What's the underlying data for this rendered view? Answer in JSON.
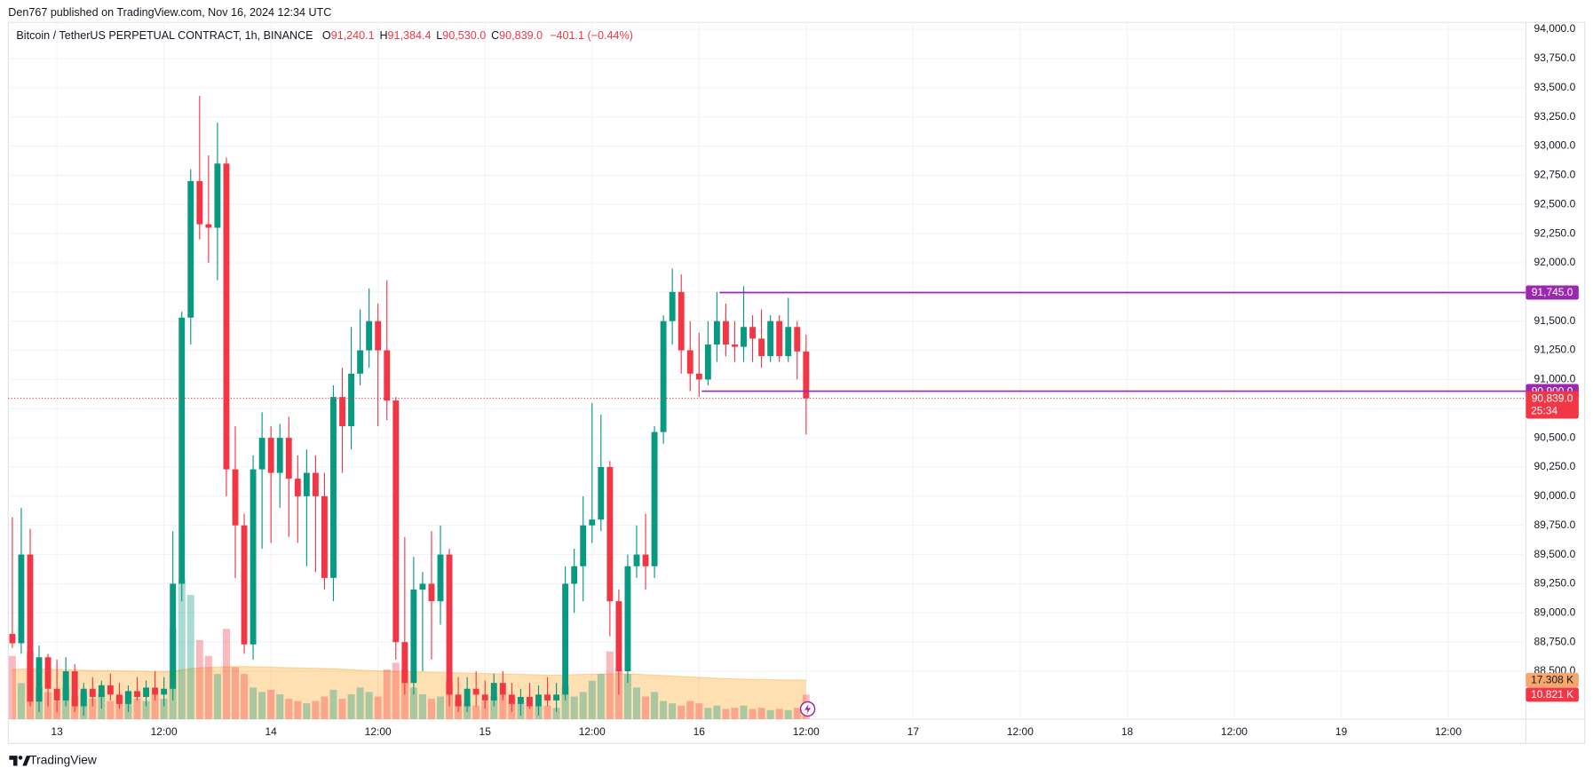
{
  "header": {
    "byline": "Den767 published on TradingView.com, Nov 16, 2024 12:34 UTC"
  },
  "footer": {
    "brand": "TradingView"
  },
  "chart_data": {
    "type": "candlestick",
    "symbol": "Bitcoin / TetherUS PERPETUAL CONTRACT, 1h, BINANCE",
    "legend": [
      {
        "key": "O",
        "value": "91,240.1"
      },
      {
        "key": "H",
        "value": "91,384.4"
      },
      {
        "key": "L",
        "value": "90,530.0"
      },
      {
        "key": "C",
        "value": "90,839.0"
      }
    ],
    "change": "−401.1 (−0.44%)",
    "up_color": "#089981",
    "down_color": "#f23645",
    "open": [
      88820,
      88740,
      89500,
      88240,
      88620,
      88350,
      88250,
      88500,
      88200,
      88350,
      88280,
      88380,
      88300,
      88220,
      88330,
      88280,
      88360,
      88300,
      88350,
      89250,
      91530,
      92700,
      92330,
      92300,
      92850,
      90230,
      89750,
      88730,
      90230,
      90500,
      90200,
      90500,
      90150,
      90000,
      90200,
      90000,
      89300,
      90850,
      90600,
      91050,
      91250,
      91500,
      91250,
      90820,
      88750,
      88400,
      89200,
      89250,
      89100,
      89500,
      88300,
      88200,
      88350,
      88300,
      88250,
      88400,
      88300,
      88220,
      88280,
      88200,
      88300,
      88250,
      88300,
      89250,
      89400,
      89750,
      89800,
      90250,
      89100,
      88500,
      89400,
      89500,
      89400,
      90550,
      91500,
      91750,
      91250,
      91050,
      91000,
      91300,
      91500,
      91300,
      91280,
      91450,
      91350,
      91200,
      91500,
      91200,
      91450,
      91240.1
    ],
    "high": [
      89820,
      89900,
      89720,
      88720,
      88650,
      88600,
      88620,
      88560,
      88400,
      88450,
      88420,
      88480,
      88400,
      88380,
      88450,
      88420,
      88500,
      88450,
      89700,
      91580,
      92800,
      93430,
      92920,
      93200,
      92900,
      90600,
      89850,
      90350,
      90720,
      90600,
      90620,
      90680,
      90350,
      90400,
      90350,
      90200,
      90950,
      91100,
      91450,
      91600,
      91780,
      91650,
      91850,
      90850,
      89650,
      89480,
      89350,
      89700,
      89750,
      89550,
      88450,
      88450,
      88500,
      88420,
      88480,
      88500,
      88400,
      88350,
      88400,
      88380,
      88450,
      88400,
      89400,
      89550,
      90000,
      90800,
      90700,
      90300,
      89200,
      89500,
      89750,
      89850,
      90600,
      91550,
      91950,
      91900,
      91500,
      91400,
      91500,
      91750,
      91650,
      91500,
      91800,
      91550,
      91600,
      91550,
      91550,
      91700,
      91500,
      91384.4
    ],
    "low": [
      88700,
      88650,
      88200,
      88150,
      88200,
      88150,
      88200,
      88150,
      88120,
      88200,
      88180,
      88250,
      88180,
      88150,
      88250,
      88200,
      88250,
      88200,
      88250,
      89100,
      91300,
      92200,
      92000,
      91850,
      90000,
      89300,
      88650,
      88600,
      89550,
      89600,
      89900,
      89650,
      89600,
      89400,
      89350,
      89200,
      89100,
      90200,
      90400,
      90950,
      91100,
      90600,
      90650,
      88600,
      88300,
      88300,
      88500,
      88600,
      88900,
      88200,
      88150,
      88150,
      88200,
      88180,
      88200,
      88250,
      88150,
      88120,
      88180,
      88120,
      88200,
      88150,
      88250,
      89000,
      89100,
      89600,
      89700,
      88800,
      88300,
      88400,
      89300,
      89200,
      89300,
      90450,
      91300,
      91050,
      90900,
      90850,
      90950,
      91150,
      91200,
      91150,
      91150,
      91150,
      91100,
      91150,
      91150,
      91150,
      91000,
      90530
    ],
    "close": [
      88740,
      89500,
      88240,
      88620,
      88350,
      88250,
      88500,
      88200,
      88350,
      88280,
      88380,
      88300,
      88220,
      88330,
      88280,
      88360,
      88300,
      88350,
      89250,
      91530,
      92700,
      92330,
      92300,
      92850,
      90230,
      89750,
      88730,
      90230,
      90500,
      90200,
      90500,
      90150,
      90000,
      90200,
      90000,
      89300,
      90850,
      90600,
      91050,
      91250,
      91500,
      91250,
      90820,
      88750,
      88400,
      89200,
      89250,
      89100,
      89500,
      88300,
      88200,
      88350,
      88300,
      88250,
      88400,
      88300,
      88220,
      88280,
      88200,
      88300,
      88250,
      88300,
      89250,
      89400,
      89750,
      89800,
      90250,
      89100,
      88500,
      89400,
      89500,
      89400,
      90550,
      91500,
      91750,
      91250,
      91050,
      91000,
      91300,
      91500,
      91300,
      91280,
      91450,
      91350,
      91200,
      91500,
      91200,
      91450,
      91240.1,
      90839
    ],
    "current_price": {
      "value": 90839.0,
      "label": "90,839.0",
      "countdown": "25:34"
    },
    "horizontal_lines": [
      {
        "value": 91745,
        "label": "91,745.0",
        "start": 79.3,
        "color": "#9c27b0"
      },
      {
        "value": 90900,
        "label": "90,900.0",
        "start": 77.3,
        "color": "#9c27b0"
      }
    ],
    "volume": {
      "values": [
        28000,
        16000,
        30000,
        14000,
        12000,
        8000,
        14000,
        10000,
        12000,
        9000,
        11000,
        8000,
        10000,
        12000,
        9000,
        8000,
        11000,
        9000,
        40000,
        62000,
        55000,
        35000,
        28000,
        20000,
        40000,
        23000,
        20000,
        14000,
        12000,
        13000,
        11000,
        9000,
        8000,
        7000,
        8000,
        10000,
        13000,
        9000,
        11000,
        14000,
        12000,
        10000,
        22000,
        25000,
        22000,
        14000,
        11000,
        9000,
        10000,
        17000,
        8000,
        7000,
        6000,
        8000,
        10000,
        11000,
        9000,
        7000,
        6000,
        6000,
        6000,
        5000,
        15000,
        10000,
        12000,
        17000,
        20000,
        30000,
        22000,
        20000,
        14000,
        10000,
        12000,
        8000,
        7000,
        6000,
        8000,
        7000,
        5000,
        6000,
        4500,
        5000,
        6000,
        4500,
        5000,
        4000,
        4500,
        4000,
        5000,
        10821
      ],
      "last_label": "10.821 K"
    },
    "volume_ma": {
      "color": "#ff9800",
      "values": [
        22000,
        22100,
        22300,
        22200,
        22100,
        22000,
        21900,
        21800,
        21700,
        21600,
        21500,
        21500,
        21400,
        21300,
        21300,
        21200,
        21200,
        21100,
        21300,
        21800,
        22400,
        22700,
        22900,
        23000,
        23200,
        23300,
        23300,
        23200,
        23100,
        23000,
        22900,
        22800,
        22700,
        22600,
        22500,
        22400,
        22300,
        22100,
        21900,
        21700,
        21500,
        21400,
        21300,
        21200,
        21100,
        21000,
        20900,
        20800,
        20700,
        20600,
        20500,
        20400,
        20300,
        20200,
        20100,
        20000,
        19900,
        19800,
        19700,
        19600,
        19500,
        19500,
        19600,
        19700,
        19800,
        19900,
        20000,
        20100,
        20100,
        20000,
        19900,
        19700,
        19500,
        19300,
        19100,
        18900,
        18700,
        18500,
        18300,
        18100,
        17900,
        17800,
        17700,
        17600,
        17500,
        17450,
        17400,
        17350,
        17320,
        17308
      ],
      "last_label": "17.308 K"
    },
    "xlim": [
      -0.46,
      169.7
    ],
    "xticks": [
      {
        "value": 5,
        "label": "13"
      },
      {
        "value": 17,
        "label": "12:00"
      },
      {
        "value": 29,
        "label": "14"
      },
      {
        "value": 41,
        "label": "12:00"
      },
      {
        "value": 53,
        "label": "15"
      },
      {
        "value": 65,
        "label": "12:00"
      },
      {
        "value": 77,
        "label": "16"
      },
      {
        "value": 89,
        "label": "12:00"
      },
      {
        "value": 101,
        "label": "17"
      },
      {
        "value": 113,
        "label": "12:00"
      },
      {
        "value": 125,
        "label": "18"
      },
      {
        "value": 137,
        "label": "12:00"
      },
      {
        "value": 149,
        "label": "19"
      },
      {
        "value": 161,
        "label": "12:00"
      }
    ],
    "ylim": [
      88090,
      94060
    ],
    "yticks": [
      {
        "value": 88500,
        "label": "88,500.0"
      },
      {
        "value": 88750,
        "label": "88,750.0"
      },
      {
        "value": 89000,
        "label": "89,000.0"
      },
      {
        "value": 89250,
        "label": "89,250.0"
      },
      {
        "value": 89500,
        "label": "89,500.0"
      },
      {
        "value": 89750,
        "label": "89,750.0"
      },
      {
        "value": 90000,
        "label": "90,000.0"
      },
      {
        "value": 90250,
        "label": "90,250.0"
      },
      {
        "value": 90500,
        "label": "90,500.0"
      },
      {
        "value": 90750,
        "label": "90,750.0"
      },
      {
        "value": 91000,
        "label": "91,000.0"
      },
      {
        "value": 91250,
        "label": "91,250.0"
      },
      {
        "value": 91500,
        "label": "91,500.0"
      },
      {
        "value": 91750,
        "label": "91,750.0"
      },
      {
        "value": 92000,
        "label": "92,000.0"
      },
      {
        "value": 92250,
        "label": "92,250.0"
      },
      {
        "value": 92500,
        "label": "92,500.0"
      },
      {
        "value": 92750,
        "label": "92,750.0"
      },
      {
        "value": 93000,
        "label": "93,000.0"
      },
      {
        "value": 93250,
        "label": "93,250.0"
      },
      {
        "value": 93500,
        "label": "93,500.0"
      },
      {
        "value": 93750,
        "label": "93,750.0"
      },
      {
        "value": 94000,
        "label": "94,000.0"
      }
    ],
    "y2lim": [
      0,
      90000
    ],
    "grid": true
  }
}
